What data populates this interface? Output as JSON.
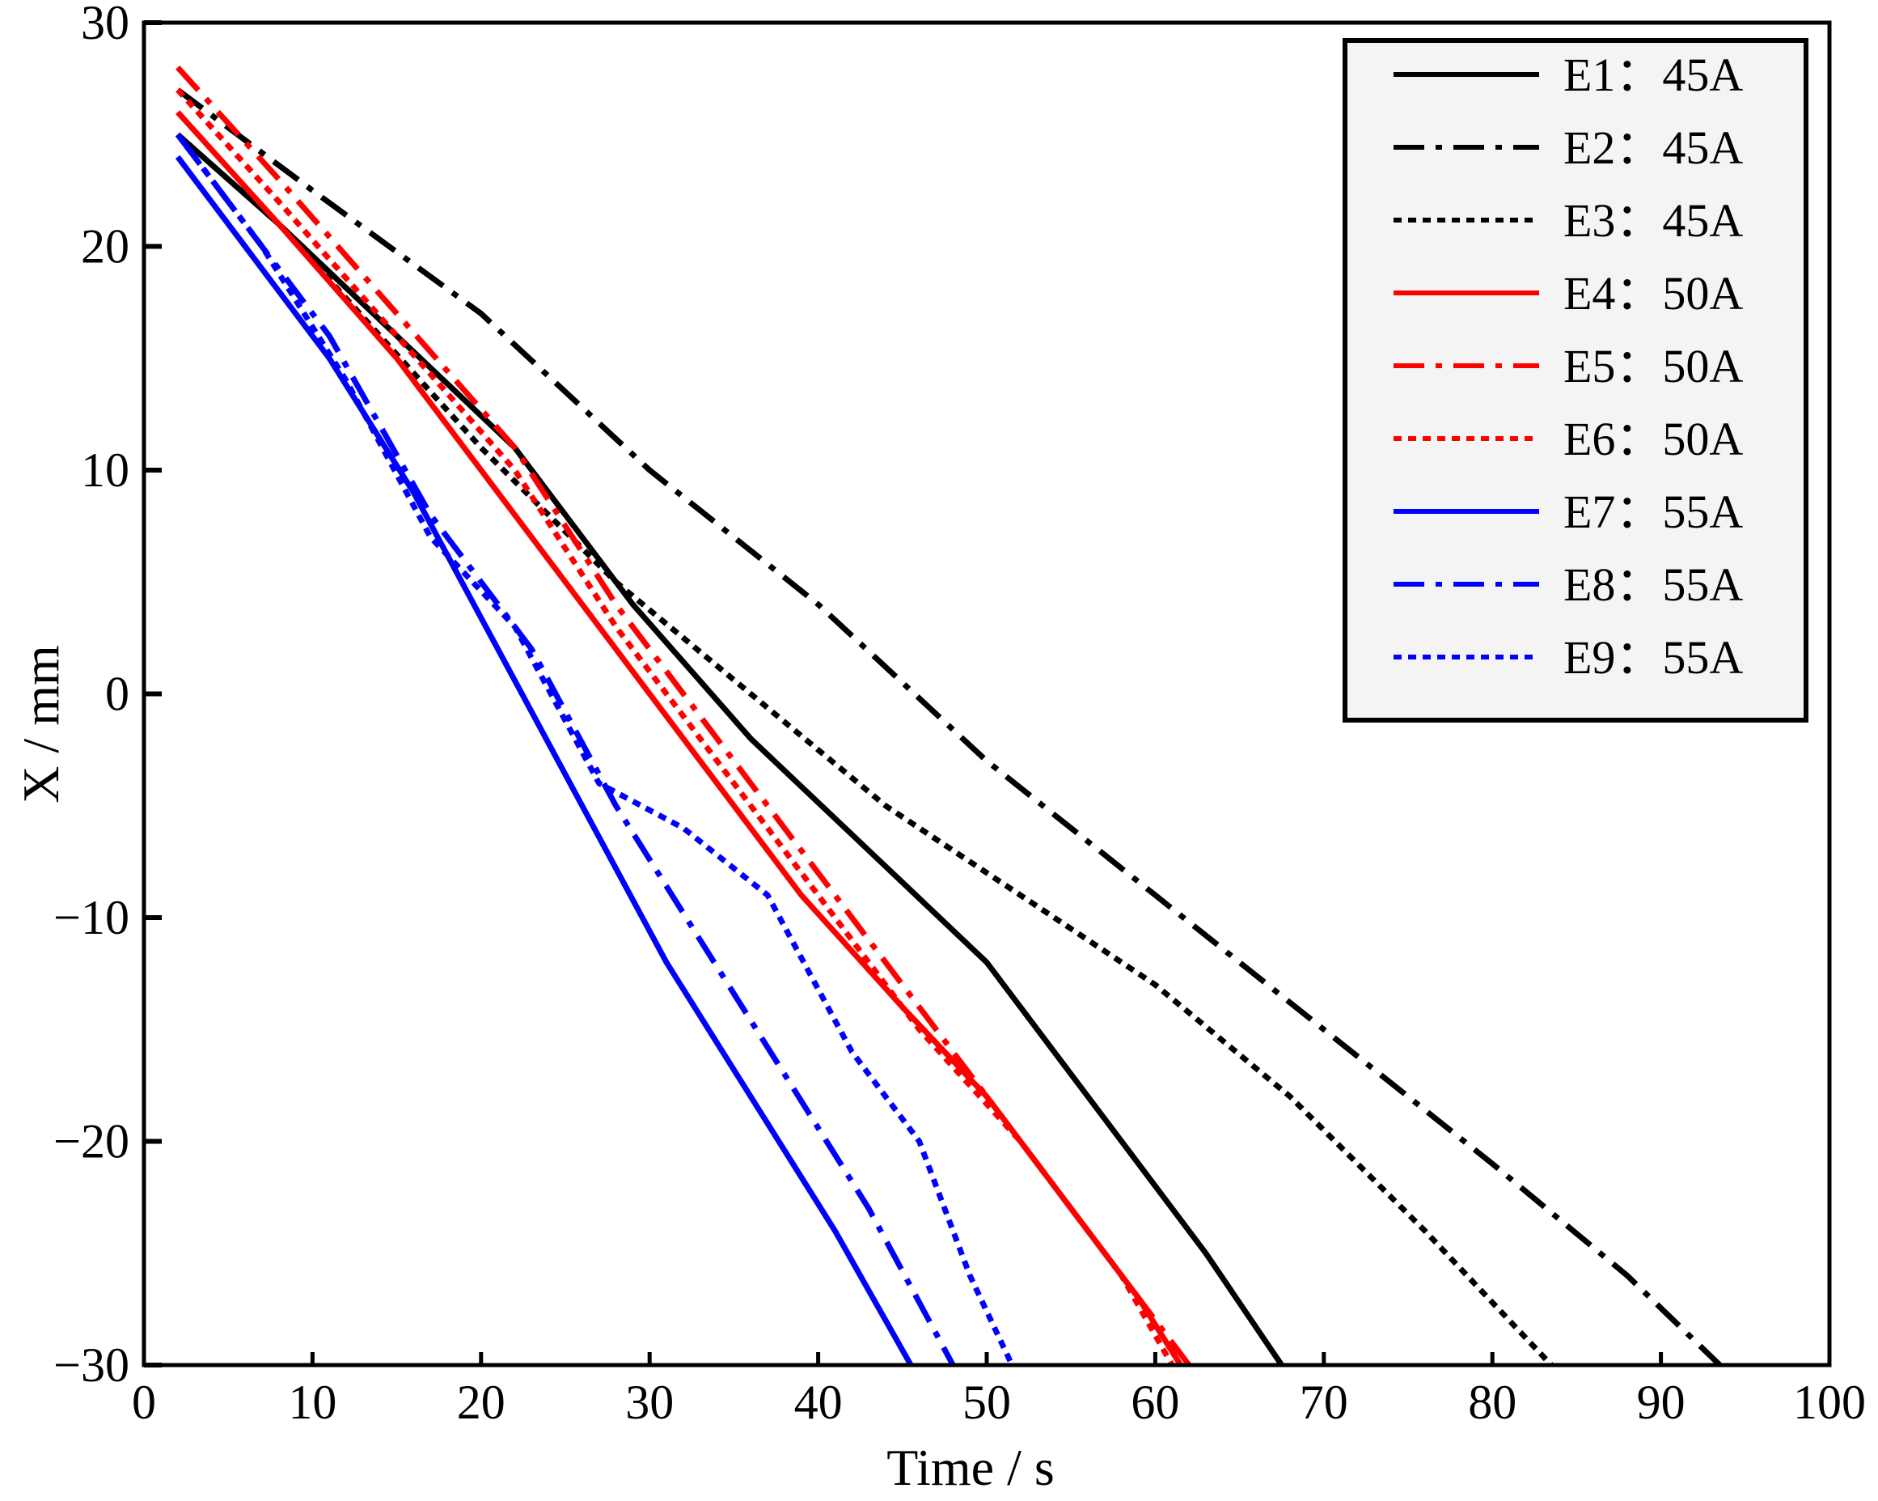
{
  "chart_data": {
    "type": "line",
    "title": "",
    "xlabel": "Time / s",
    "ylabel": "X / mm",
    "xlim": [
      0,
      100
    ],
    "ylim": [
      -30,
      30
    ],
    "xticks": [
      "0",
      "10",
      "20",
      "30",
      "40",
      "50",
      "60",
      "70",
      "80",
      "90",
      "100"
    ],
    "yticks": [
      "30",
      "20",
      "10",
      "0",
      "−10",
      "−20",
      "−30"
    ],
    "grid": false,
    "legend_position": "top-right",
    "series": [
      {
        "name": "E1：45A",
        "color": "#000000",
        "style": "solid",
        "x": [
          2,
          8,
          15,
          22,
          29,
          36,
          43,
          50,
          57,
          63,
          67.5
        ],
        "y": [
          25,
          21,
          16,
          11,
          4,
          -2,
          -7,
          -12,
          -19,
          -25,
          -30
        ]
      },
      {
        "name": "E2：45A",
        "color": "#000000",
        "style": "dashdot",
        "x": [
          2,
          10,
          20,
          30,
          40,
          50,
          60,
          70,
          80,
          88,
          93.5
        ],
        "y": [
          27,
          22.5,
          17,
          10,
          4,
          -3,
          -9,
          -15,
          -21,
          -26,
          -30
        ]
      },
      {
        "name": "E3：45A",
        "color": "#000000",
        "style": "dotted",
        "x": [
          2,
          8,
          14,
          20,
          28,
          36,
          44,
          52,
          60,
          68,
          76,
          83.5
        ],
        "y": [
          25,
          21,
          16,
          11,
          5,
          0,
          -5,
          -9,
          -13,
          -18,
          -24,
          -30
        ]
      },
      {
        "name": "E4：50A",
        "color": "#ff0000",
        "style": "solid",
        "x": [
          2,
          8,
          15,
          21,
          27,
          33,
          39,
          45,
          50,
          55,
          59,
          61.5
        ],
        "y": [
          26,
          21,
          15,
          9,
          3,
          -3,
          -9,
          -14,
          -18,
          -23,
          -27,
          -30
        ]
      },
      {
        "name": "E5：50A",
        "color": "#ff0000",
        "style": "dashdot",
        "x": [
          2,
          8,
          15,
          22,
          28,
          34,
          40,
          46,
          52,
          58,
          62
        ],
        "y": [
          28,
          23,
          17,
          11,
          4,
          -2,
          -8,
          -14,
          -20,
          -26,
          -30
        ]
      },
      {
        "name": "E6：50A",
        "color": "#ff0000",
        "style": "dotted",
        "x": [
          2,
          8,
          15,
          22,
          28,
          34,
          40,
          46,
          52,
          58,
          61
        ],
        "y": [
          27,
          22,
          16,
          10,
          3,
          -3,
          -9,
          -15,
          -20,
          -26,
          -30
        ]
      },
      {
        "name": "E7：55A",
        "color": "#0000ff",
        "style": "solid",
        "x": [
          2,
          6,
          11,
          16,
          21,
          26,
          31,
          36,
          41,
          45.5
        ],
        "y": [
          24,
          20,
          15,
          9,
          2,
          -5,
          -12,
          -18,
          -24,
          -30
        ]
      },
      {
        "name": "E8：55A",
        "color": "#0000ff",
        "style": "dashdot",
        "x": [
          2,
          6,
          11,
          17,
          23,
          28,
          33,
          38,
          43,
          48
        ],
        "y": [
          25,
          21,
          16,
          8,
          2,
          -5,
          -11,
          -17,
          -23,
          -30
        ]
      },
      {
        "name": "E9：55A",
        "color": "#0000ff",
        "style": "dotted",
        "x": [
          2,
          7,
          12,
          17,
          22,
          27,
          32,
          37,
          42,
          46,
          49,
          51.5
        ],
        "y": [
          25,
          20,
          14,
          7,
          3,
          -4,
          -6,
          -9,
          -16,
          -20,
          -26,
          -30
        ]
      }
    ]
  }
}
